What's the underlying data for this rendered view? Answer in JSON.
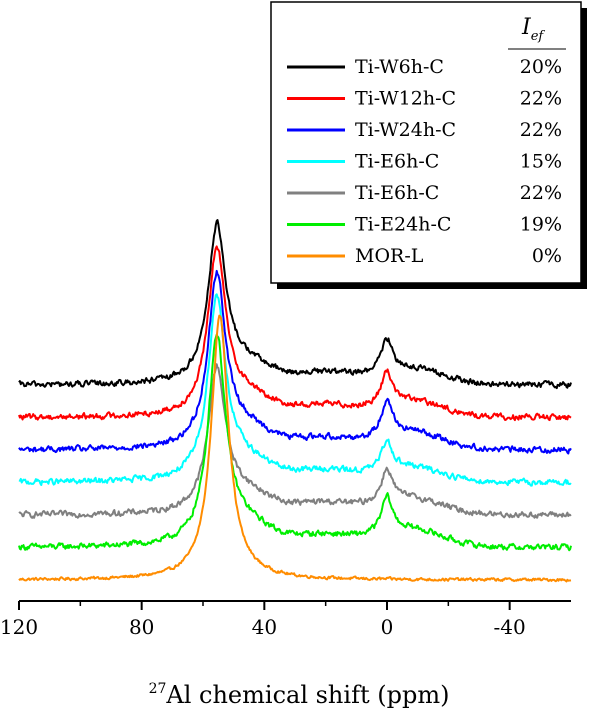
{
  "chart_data": {
    "type": "line",
    "title": "",
    "xlabel": "Al chemical shift (ppm)",
    "xlabel_superscript": "27",
    "ylabel": "",
    "xlim": [
      120,
      -60
    ],
    "x_reversed": true,
    "x_ticks": [
      120,
      80,
      40,
      0,
      -40
    ],
    "x_tick_labels": [
      "120",
      "80",
      "40",
      "0",
      "-40"
    ],
    "y_axis_shown": false,
    "grid": false,
    "legend": {
      "placement": "top-right",
      "header": "I",
      "header_subscript": "ef"
    },
    "peaks_ppm": [
      55,
      0
    ],
    "series": [
      {
        "name": "Ti-W6h-C",
        "color": "#000000",
        "value_label": "20%",
        "offset": 6,
        "main_peak": 4.6,
        "main_peak_ppm": 55.5,
        "side_peak": 1.0,
        "side_peak_ppm": 0
      },
      {
        "name": "Ti-W12h-C",
        "color": "#ff0000",
        "value_label": "22%",
        "offset": 5,
        "main_peak": 4.9,
        "main_peak_ppm": 55.5,
        "side_peak": 1.0,
        "side_peak_ppm": 0
      },
      {
        "name": "Ti-W24h-C",
        "color": "#0000ff",
        "value_label": "22%",
        "offset": 4,
        "main_peak": 5.1,
        "main_peak_ppm": 55.5,
        "side_peak": 1.1,
        "side_peak_ppm": 0
      },
      {
        "name": "Ti-E6h-C",
        "color": "#00ffff",
        "value_label": "15%",
        "offset": 3,
        "main_peak": 5.4,
        "main_peak_ppm": 55.5,
        "side_peak": 0.9,
        "side_peak_ppm": 0
      },
      {
        "name": "Ti-E6h-C",
        "color": "#808080",
        "value_label": "22%",
        "offset": 2,
        "main_peak": 4.2,
        "main_peak_ppm": 55.5,
        "side_peak": 1.0,
        "side_peak_ppm": 0
      },
      {
        "name": "Ti-E24h-C",
        "color": "#00ee00",
        "value_label": "19%",
        "offset": 1,
        "main_peak": 6.2,
        "main_peak_ppm": 55.5,
        "side_peak": 1.1,
        "side_peak_ppm": 0
      },
      {
        "name": "MOR-L",
        "color": "#ff8c00",
        "value_label": "0%",
        "offset": 0,
        "main_peak": 8.1,
        "main_peak_ppm": 54.5,
        "side_peak": 0.0,
        "side_peak_ppm": 0
      }
    ]
  }
}
